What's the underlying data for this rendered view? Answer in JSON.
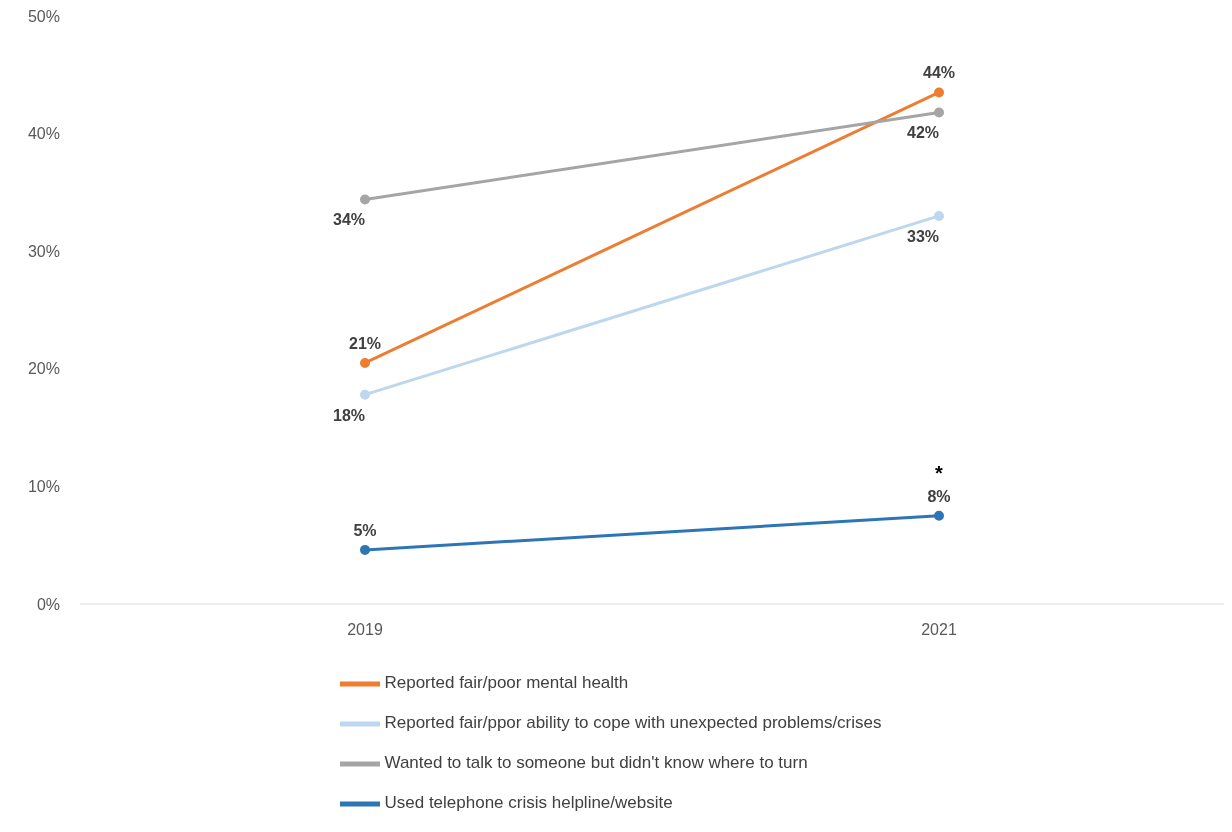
{
  "chart_data": {
    "type": "line",
    "categories": [
      "2019",
      "2021"
    ],
    "series": [
      {
        "name": "Reported fair/poor mental health",
        "color": "#ed7d31",
        "values": [
          20.5,
          43.5
        ],
        "value_labels": [
          "21%",
          "44%"
        ]
      },
      {
        "name": "Reported fair/ppor ability to cope with unexpected problems/crises",
        "color": "#bdd7ee",
        "values": [
          17.8,
          33
        ],
        "value_labels": [
          "18%",
          "33%"
        ]
      },
      {
        "name": "Wanted to talk to someone but didn't know where to turn",
        "color": "#a5a5a5",
        "values": [
          34.4,
          41.8
        ],
        "value_labels": [
          "34%",
          "42%"
        ]
      },
      {
        "name": "Used telephone crisis helpline/website",
        "color": "#2e75b6",
        "values": [
          4.6,
          7.5
        ],
        "value_labels": [
          "5%",
          "8%"
        ]
      }
    ],
    "ylim": [
      0,
      50
    ],
    "yticks": [
      {
        "value": 0,
        "label": "0%"
      },
      {
        "value": 10,
        "label": "10%"
      },
      {
        "value": 20,
        "label": "20%"
      },
      {
        "value": 30,
        "label": "30%"
      },
      {
        "value": 40,
        "label": "40%"
      },
      {
        "value": 50,
        "label": "50%"
      }
    ],
    "annotations": [
      {
        "text": "*",
        "x": "2021",
        "y": 7.5
      }
    ],
    "grid": false,
    "legend": "bottom",
    "marker": "circle",
    "line_style": "solid"
  }
}
